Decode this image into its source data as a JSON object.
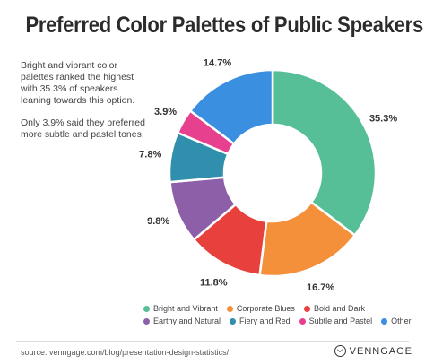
{
  "title": "Preferred Color Palettes of Public Speakers",
  "description": {
    "para1": "Bright and vibrant color palettes ranked the highest with 35.3% of speakers leaning towards this option.",
    "para2": "Only 3.9% said they preferred more subtle and pastel tones."
  },
  "chart_data": {
    "type": "pie",
    "variant": "donut",
    "categories": [
      "Bright and Vibrant",
      "Corporate Blues",
      "Bold and Dark",
      "Earthy and Natural",
      "Fiery and Red",
      "Subtle and Pastel",
      "Other"
    ],
    "values": [
      35.3,
      16.7,
      11.8,
      9.8,
      7.8,
      3.9,
      14.7
    ],
    "labels": [
      "35.3%",
      "16.7%",
      "11.8%",
      "9.8%",
      "7.8%",
      "3.9%",
      "14.7%"
    ],
    "colors": [
      "#56bf97",
      "#f5903a",
      "#e8403d",
      "#8c5fa8",
      "#2f8fad",
      "#e6408f",
      "#3a8fe0"
    ],
    "legend_position": "bottom",
    "title": "Preferred Color Palettes of Public Speakers"
  },
  "footer": {
    "source": "source: venngage.com/blog/presentation-design-statistics/",
    "brand": "VENNGAGE",
    "brand_icon": "venngage-logo-icon"
  }
}
